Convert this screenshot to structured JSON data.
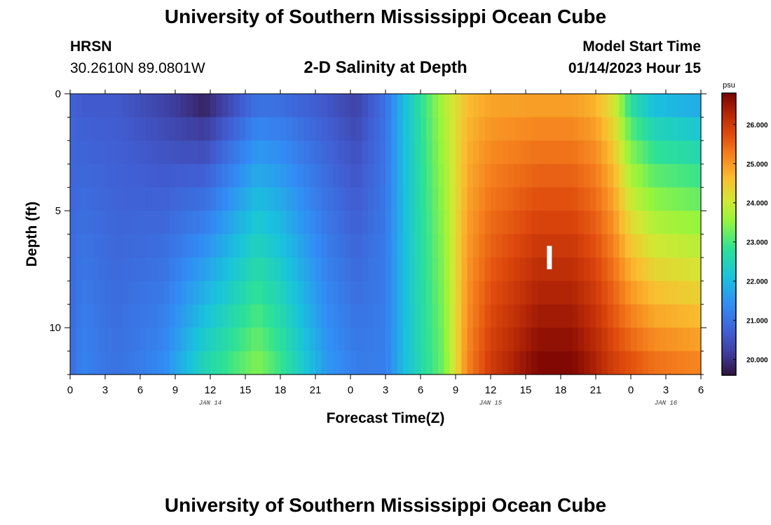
{
  "header": {
    "title": "University of Southern Mississippi Ocean Cube",
    "station": "HRSN",
    "coordinates": "30.2610N  89.0801W",
    "subtitle": "2-D Salinity at Depth",
    "model_start_label": "Model Start Time",
    "model_start_value": "01/14/2023 Hour 15"
  },
  "footer": {
    "title": "University of Southern Mississippi Ocean Cube"
  },
  "chart_data": {
    "type": "heatmap",
    "title": "2-D Salinity at Depth",
    "xlabel": "Forecast Time(Z)",
    "ylabel": "Depth (ft)",
    "x_range_hours": [
      0,
      54
    ],
    "x_tick_labels": [
      "0",
      "3",
      "6",
      "9",
      "12",
      "15",
      "18",
      "21",
      "0",
      "3",
      "6",
      "9",
      "12",
      "15",
      "18",
      "21",
      "0",
      "3",
      "6"
    ],
    "date_labels": [
      {
        "label": "JAN 14",
        "hour": 12
      },
      {
        "label": "JAN 15",
        "hour": 36
      },
      {
        "label": "JAN 16",
        "hour": 51
      }
    ],
    "y_range_ft": [
      0,
      12
    ],
    "y_tick_labels": [
      0,
      5,
      10
    ],
    "colorbar": {
      "unit": "psu",
      "min": 19.6,
      "max": 26.8,
      "tick_values": [
        20.0,
        21.0,
        22.0,
        23.0,
        24.0,
        25.0,
        26.0
      ],
      "tick_labels": [
        "20.000",
        "21.000",
        "22.000",
        "23.000",
        "24.000",
        "25.000",
        "26.000"
      ]
    },
    "salinity_keyframes": [
      {
        "hour": 0,
        "surface": 20.8,
        "bottom": 20.9
      },
      {
        "hour": 1,
        "surface": 20.6,
        "bottom": 21.3
      },
      {
        "hour": 4,
        "surface": 20.6,
        "bottom": 21.0
      },
      {
        "hour": 8,
        "surface": 20.2,
        "bottom": 21.4
      },
      {
        "hour": 11.5,
        "surface": 19.6,
        "bottom": 22.6
      },
      {
        "hour": 16,
        "surface": 20.8,
        "bottom": 23.5
      },
      {
        "hour": 18,
        "surface": 20.8,
        "bottom": 23.0
      },
      {
        "hour": 22,
        "surface": 20.5,
        "bottom": 21.6
      },
      {
        "hour": 24.5,
        "surface": 20.2,
        "bottom": 21.2
      },
      {
        "hour": 27,
        "surface": 21.0,
        "bottom": 21.2
      },
      {
        "hour": 28.5,
        "surface": 22.0,
        "bottom": 22.0
      },
      {
        "hour": 30,
        "surface": 22.8,
        "bottom": 22.6
      },
      {
        "hour": 32,
        "surface": 23.8,
        "bottom": 23.3
      },
      {
        "hour": 34,
        "surface": 24.6,
        "bottom": 25.2
      },
      {
        "hour": 36,
        "surface": 24.8,
        "bottom": 26.0
      },
      {
        "hour": 40,
        "surface": 24.8,
        "bottom": 26.8
      },
      {
        "hour": 43,
        "surface": 24.8,
        "bottom": 26.8
      },
      {
        "hour": 45,
        "surface": 24.6,
        "bottom": 26.4
      },
      {
        "hour": 46.5,
        "surface": 24.0,
        "bottom": 26.0
      },
      {
        "hour": 48,
        "surface": 22.5,
        "bottom": 25.8
      },
      {
        "hour": 50,
        "surface": 21.8,
        "bottom": 25.5
      },
      {
        "hour": 54,
        "surface": 21.5,
        "bottom": 25.3
      }
    ]
  }
}
